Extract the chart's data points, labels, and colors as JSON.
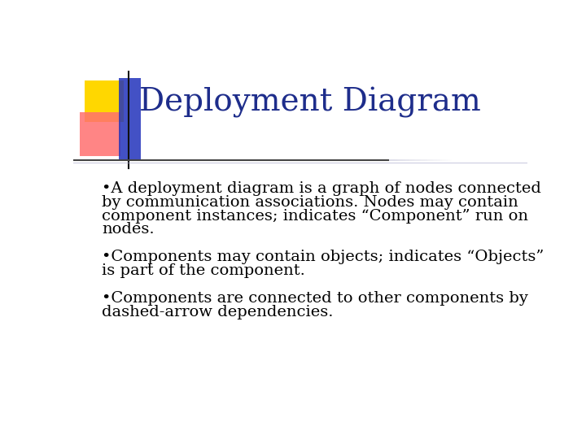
{
  "title": "Deployment Diagram",
  "title_color": "#1E2D8B",
  "title_fontsize": 28,
  "title_font": "serif",
  "background_color": "#FFFFFF",
  "bullet_lines": [
    "•A deployment diagram is a graph of nodes connected",
    "by communication associations. Nodes may contain",
    "component instances; indicates “Component” run on",
    "nodes.",
    "",
    "•Components may contain objects; indicates “Objects”",
    "is part of the component.",
    "",
    "•Components are connected to other components by",
    "dashed-arrow dependencies."
  ],
  "bullet_fontsize": 14,
  "bullet_color": "#000000",
  "bullet_font": "serif",
  "deco_yellow_color": "#FFD700",
  "deco_red_color": "#FF7070",
  "deco_blue_color": "#2233BB",
  "line_color": "#555555"
}
